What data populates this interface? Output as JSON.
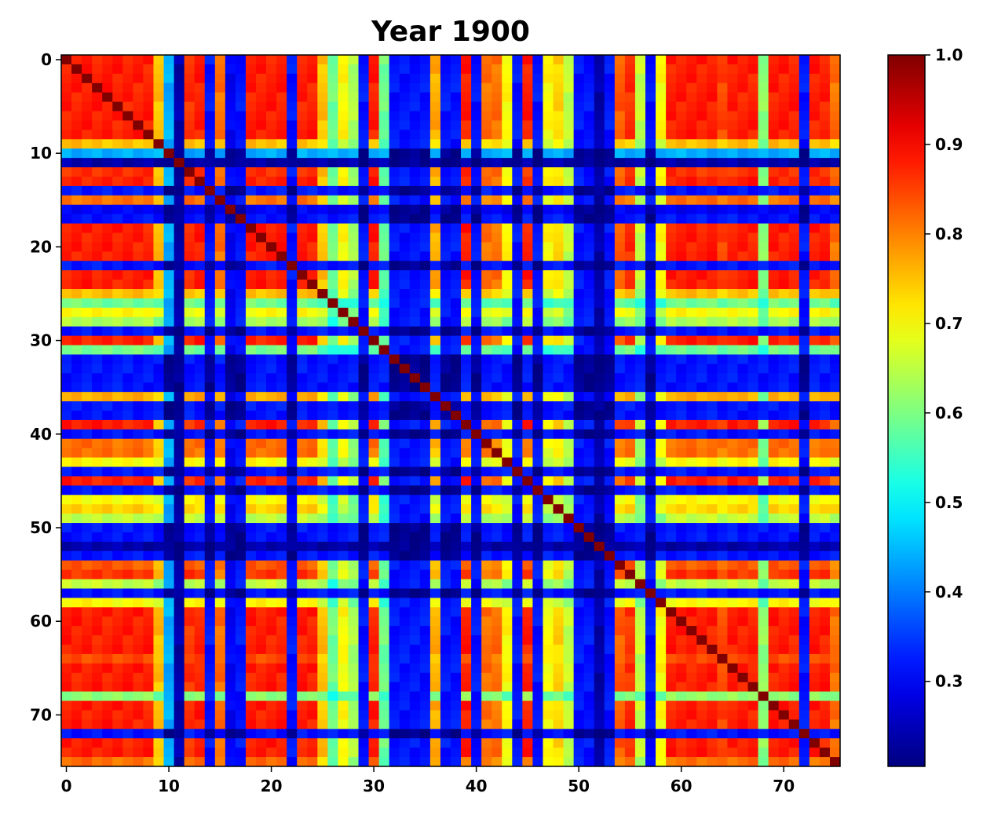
{
  "chart_data": {
    "type": "heatmap",
    "title": "Year 1900",
    "xlabel": "",
    "ylabel": "",
    "n": 76,
    "xlim": [
      -0.5,
      75.5
    ],
    "ylim": [
      75.5,
      -0.5
    ],
    "x_ticks": [
      0,
      10,
      20,
      30,
      40,
      50,
      60,
      70
    ],
    "y_ticks": [
      0,
      10,
      20,
      30,
      40,
      50,
      60,
      70
    ],
    "colormap": "jet",
    "colorbar": {
      "min": 0.205,
      "max": 1.0,
      "ticks": [
        0.3,
        0.4,
        0.5,
        0.6,
        0.7,
        0.8,
        0.9,
        1.0
      ],
      "tick_labels": [
        "0.3",
        "0.4",
        "0.5",
        "0.6",
        "0.7",
        "0.8",
        "0.9",
        "1.0"
      ]
    },
    "diagonal_value": 1.0,
    "row_profile": [
      0.88,
      0.88,
      0.88,
      0.88,
      0.88,
      0.88,
      0.88,
      0.88,
      0.88,
      0.72,
      0.42,
      0.22,
      0.86,
      0.88,
      0.3,
      0.8,
      0.28,
      0.3,
      0.88,
      0.88,
      0.88,
      0.88,
      0.3,
      0.88,
      0.88,
      0.72,
      0.52,
      0.66,
      0.58,
      0.3,
      0.88,
      0.52,
      0.3,
      0.3,
      0.3,
      0.3,
      0.74,
      0.3,
      0.3,
      0.88,
      0.3,
      0.8,
      0.8,
      0.66,
      0.3,
      0.88,
      0.3,
      0.66,
      0.7,
      0.6,
      0.3,
      0.3,
      0.22,
      0.3,
      0.82,
      0.86,
      0.6,
      0.3,
      0.66,
      0.88,
      0.88,
      0.88,
      0.88,
      0.88,
      0.84,
      0.88,
      0.88,
      0.88,
      0.55,
      0.88,
      0.88,
      0.88,
      0.3,
      0.88,
      0.88,
      0.8
    ]
  }
}
